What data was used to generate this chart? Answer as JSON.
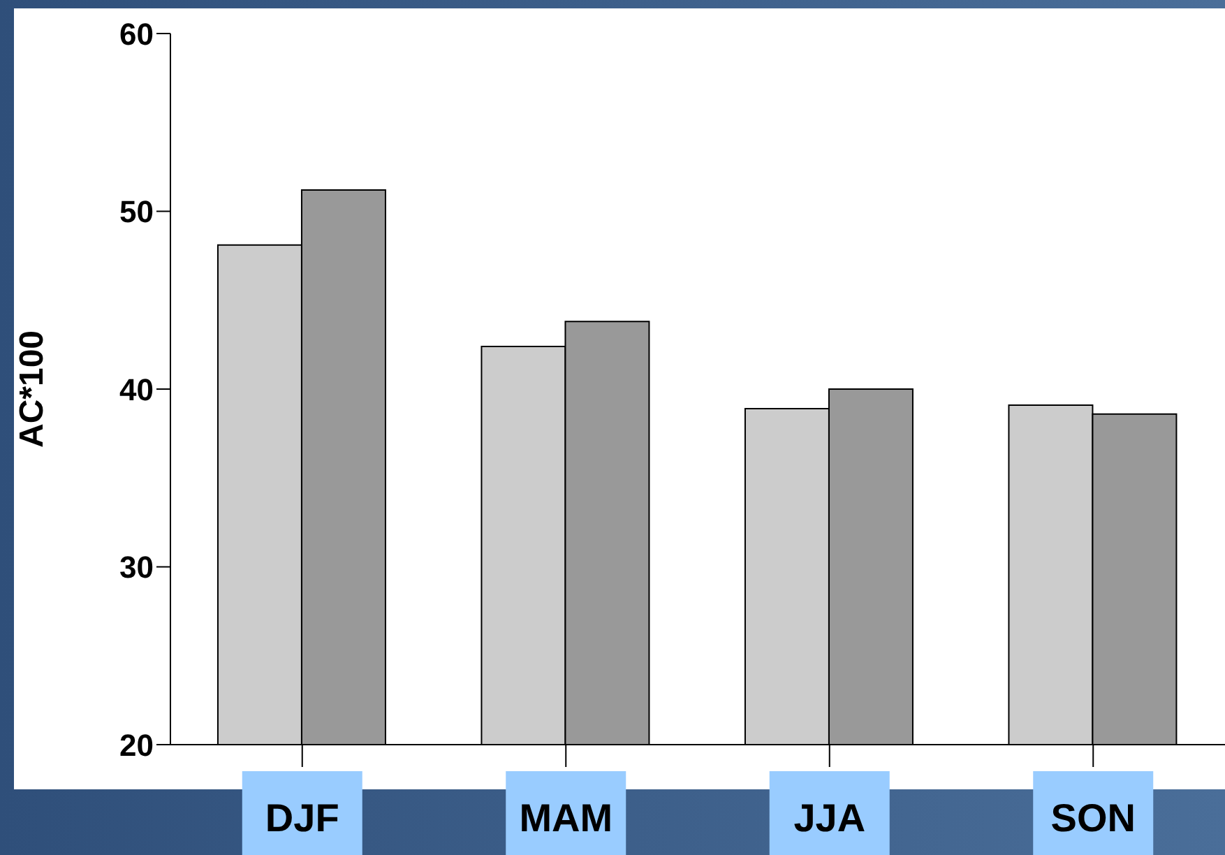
{
  "chart_data": {
    "type": "bar",
    "ylabel": "AC*100",
    "categories": [
      "DJF",
      "MAM",
      "JJA",
      "SON"
    ],
    "series": [
      {
        "color": "#cccccc",
        "values": [
          48.1,
          42.4,
          38.9,
          39.1
        ]
      },
      {
        "color": "#999999",
        "values": [
          51.2,
          43.8,
          40.0,
          38.6
        ]
      }
    ],
    "ylim": [
      20,
      60
    ],
    "yticks": [
      20,
      30,
      40,
      50,
      60
    ],
    "grid": false,
    "legend": false
  }
}
